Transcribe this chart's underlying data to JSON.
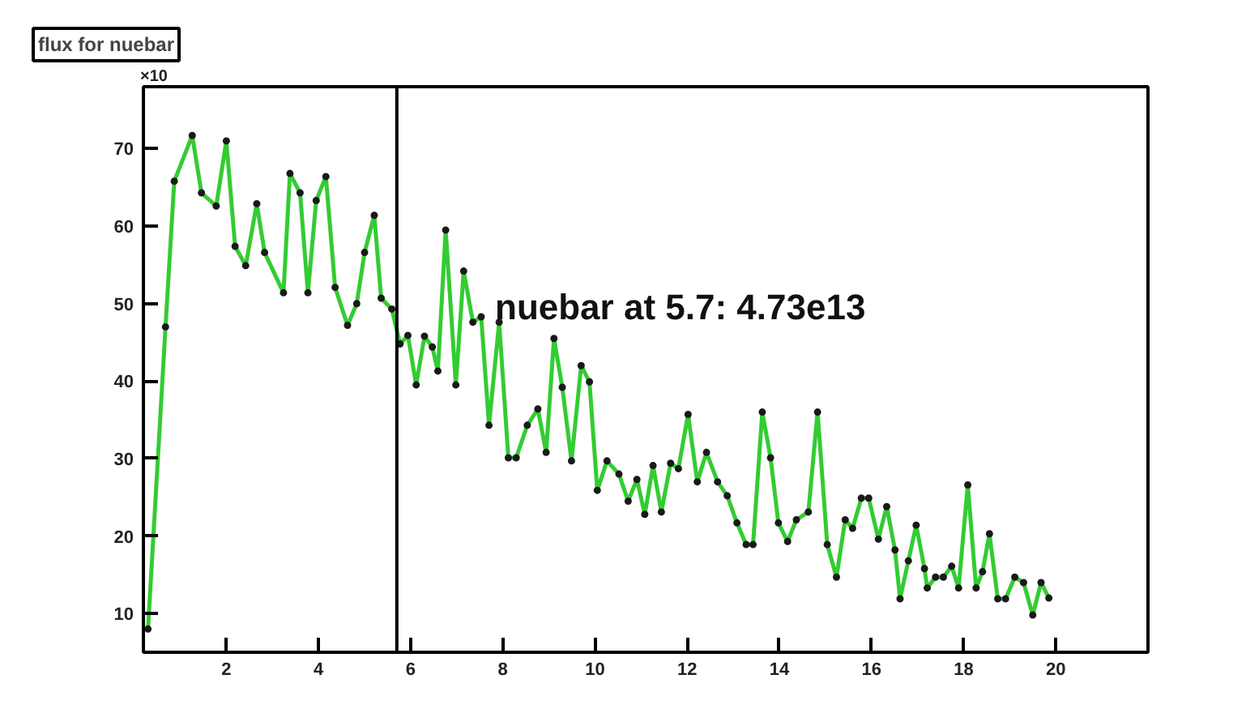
{
  "chart_data": {
    "type": "line",
    "title": "flux for nuebar",
    "xlim": [
      0.2,
      22
    ],
    "ylim": [
      5,
      78
    ],
    "xticks": [
      2,
      4,
      6,
      8,
      10,
      12,
      14,
      16,
      18,
      20
    ],
    "yticks": [
      10,
      20,
      30,
      40,
      50,
      60,
      70
    ],
    "marker": "circle",
    "line_style": "solid",
    "series": [
      {
        "color": "#33cc33",
        "x": [
          0.3,
          0.68,
          0.87,
          1.26,
          1.46,
          1.78,
          2.0,
          2.19,
          2.42,
          2.66,
          2.83,
          3.24,
          3.38,
          3.6,
          3.77,
          3.95,
          4.16,
          4.36,
          4.63,
          4.83,
          5.0,
          5.21,
          5.36,
          5.59,
          5.77,
          5.94,
          6.12,
          6.3,
          6.47,
          6.59,
          6.76,
          6.98,
          7.15,
          7.35,
          7.53,
          7.7,
          7.92,
          8.12,
          8.29,
          8.53,
          8.76,
          8.94,
          9.11,
          9.29,
          9.49,
          9.7,
          9.88,
          10.05,
          10.26,
          10.52,
          10.72,
          10.91,
          11.08,
          11.26,
          11.44,
          11.64,
          11.81,
          12.02,
          12.22,
          12.42,
          12.66,
          12.87,
          13.08,
          13.28,
          13.43,
          13.63,
          13.81,
          13.98,
          14.18,
          14.37,
          14.63,
          14.83,
          15.04,
          15.24,
          15.43,
          15.59,
          15.78,
          15.94,
          16.15,
          16.33,
          16.51,
          16.62,
          16.8,
          16.97,
          17.15,
          17.21,
          17.39,
          17.56,
          17.74,
          17.89,
          18.09,
          18.27,
          18.41,
          18.56,
          18.74,
          18.91,
          19.11,
          19.3,
          19.5,
          19.68,
          19.85
        ],
        "values": [
          8,
          47,
          65.8,
          71.7,
          64.3,
          62.6,
          71,
          57.4,
          54.9,
          62.9,
          56.6,
          51.4,
          66.8,
          64.3,
          51.4,
          63.3,
          66.4,
          52.1,
          47.2,
          50,
          56.6,
          61.4,
          50.7,
          49.3,
          44.8,
          45.9,
          39.5,
          45.8,
          44.4,
          41.3,
          59.5,
          39.5,
          54.2,
          47.6,
          48.3,
          34.3,
          47.6,
          30.1,
          30.1,
          34.3,
          36.4,
          30.8,
          45.5,
          39.2,
          29.7,
          42.0,
          39.9,
          25.9,
          29.7,
          28.0,
          24.5,
          27.3,
          22.8,
          29.1,
          23.1,
          29.4,
          28.7,
          35.7,
          27,
          30.8,
          27,
          25.2,
          21.7,
          18.9,
          18.9,
          36,
          30.1,
          21.7,
          19.3,
          22.1,
          23.1,
          36,
          18.9,
          14.7,
          22.1,
          21,
          24.9,
          24.9,
          19.6,
          23.8,
          18.2,
          11.9,
          16.8,
          21.4,
          15.8,
          13.3,
          14.7,
          14.7,
          16.1,
          13.3,
          26.6,
          13.3,
          15.4,
          20.3,
          11.9,
          11.9,
          14.7,
          14,
          9.8,
          14,
          12
        ]
      }
    ],
    "ref_lines": [
      {
        "axis": "x",
        "value": 5.7,
        "color": "#000000"
      }
    ],
    "annotations": [
      "×10",
      "nuebar at 5.7: 4.73e13"
    ]
  }
}
